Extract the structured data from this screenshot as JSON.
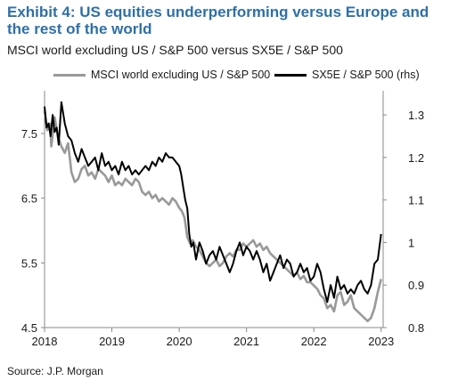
{
  "header": {
    "title": "Exhibit 4: US equities underperforming versus Europe and the rest of the world",
    "subtitle": "MSCI world excluding US / S&P 500 versus SX5E / S&P 500"
  },
  "footer": {
    "source": "Source: J.P. Morgan"
  },
  "colors": {
    "title": "#2f6fa8",
    "gray_series": "#999999",
    "black_series": "#000000"
  },
  "chart_data": {
    "type": "line",
    "title": "Exhibit 4: US equities underperforming versus Europe and the rest of the world",
    "subtitle": "MSCI world excluding US / S&P 500 versus SX5E / S&P 500",
    "legend_position": "top",
    "grid": false,
    "x_axis": {
      "ticks": [
        "2018",
        "2019",
        "2020",
        "2021",
        "2022",
        "2023"
      ],
      "range": [
        2018,
        2023.03
      ]
    },
    "y_axis_left": {
      "ticks": [
        "7.5",
        "6.5",
        "5.5",
        "4.5"
      ],
      "range": [
        4.5,
        8.05
      ]
    },
    "y_axis_right": {
      "ticks": [
        "1.3",
        "1.2",
        "1.1",
        "1",
        "0.9",
        "0.8"
      ],
      "range": [
        0.8,
        1.34
      ]
    },
    "series": [
      {
        "name": "MSCI world excluding US / S&P 500",
        "axis": "left",
        "color": "#999999",
        "x": [
          2018.0,
          2018.04,
          2018.08,
          2018.1,
          2018.15,
          2018.2,
          2018.25,
          2018.3,
          2018.35,
          2018.4,
          2018.45,
          2018.5,
          2018.55,
          2018.6,
          2018.65,
          2018.7,
          2018.75,
          2018.8,
          2018.85,
          2018.9,
          2018.95,
          2019.0,
          2019.05,
          2019.1,
          2019.15,
          2019.2,
          2019.25,
          2019.3,
          2019.35,
          2019.4,
          2019.45,
          2019.5,
          2019.55,
          2019.6,
          2019.65,
          2019.7,
          2019.75,
          2019.8,
          2019.85,
          2019.9,
          2019.95,
          2020.0,
          2020.04,
          2020.08,
          2020.12,
          2020.16,
          2020.2,
          2020.25,
          2020.3,
          2020.35,
          2020.4,
          2020.45,
          2020.5,
          2020.55,
          2020.6,
          2020.65,
          2020.7,
          2020.75,
          2020.8,
          2020.85,
          2020.9,
          2020.95,
          2021.0,
          2021.05,
          2021.1,
          2021.15,
          2021.2,
          2021.25,
          2021.3,
          2021.35,
          2021.4,
          2021.45,
          2021.5,
          2021.55,
          2021.6,
          2021.65,
          2021.7,
          2021.75,
          2021.8,
          2021.85,
          2021.9,
          2021.95,
          2022.0,
          2022.05,
          2022.1,
          2022.15,
          2022.2,
          2022.25,
          2022.3,
          2022.35,
          2022.4,
          2022.45,
          2022.5,
          2022.55,
          2022.6,
          2022.65,
          2022.7,
          2022.75,
          2022.8,
          2022.85,
          2022.9,
          2022.95,
          2023.0
        ],
        "y": [
          7.85,
          7.55,
          7.65,
          7.3,
          7.75,
          7.45,
          7.3,
          7.2,
          7.35,
          6.9,
          6.75,
          6.8,
          6.95,
          7.0,
          6.85,
          6.9,
          6.8,
          6.95,
          6.9,
          6.85,
          6.75,
          6.85,
          6.7,
          6.75,
          6.7,
          6.8,
          6.75,
          6.7,
          6.8,
          6.75,
          6.6,
          6.55,
          6.6,
          6.5,
          6.55,
          6.45,
          6.5,
          6.45,
          6.4,
          6.5,
          6.45,
          6.35,
          6.3,
          6.2,
          5.9,
          5.8,
          5.85,
          5.75,
          5.7,
          5.6,
          5.5,
          5.45,
          5.5,
          5.55,
          5.45,
          5.5,
          5.6,
          5.65,
          5.6,
          5.7,
          5.7,
          5.8,
          5.75,
          5.8,
          5.85,
          5.75,
          5.8,
          5.7,
          5.75,
          5.65,
          5.6,
          5.55,
          5.5,
          5.45,
          5.4,
          5.35,
          5.3,
          5.35,
          5.25,
          5.3,
          5.2,
          5.2,
          5.15,
          5.1,
          5.0,
          4.95,
          4.8,
          4.85,
          4.75,
          5.0,
          5.05,
          4.85,
          4.9,
          5.0,
          4.8,
          4.75,
          4.7,
          4.65,
          4.6,
          4.65,
          4.8,
          5.05,
          5.25
        ]
      },
      {
        "name": "SX5E / S&P 500 (rhs)",
        "axis": "right",
        "color": "#000000",
        "x": [
          2018.0,
          2018.03,
          2018.06,
          2018.09,
          2018.12,
          2018.15,
          2018.18,
          2018.21,
          2018.25,
          2018.3,
          2018.35,
          2018.4,
          2018.45,
          2018.5,
          2018.55,
          2018.6,
          2018.65,
          2018.7,
          2018.75,
          2018.8,
          2018.85,
          2018.9,
          2018.95,
          2019.0,
          2019.05,
          2019.1,
          2019.15,
          2019.2,
          2019.25,
          2019.3,
          2019.35,
          2019.4,
          2019.45,
          2019.5,
          2019.55,
          2019.6,
          2019.65,
          2019.7,
          2019.75,
          2019.8,
          2019.85,
          2019.9,
          2019.95,
          2020.0,
          2020.03,
          2020.06,
          2020.09,
          2020.12,
          2020.15,
          2020.18,
          2020.21,
          2020.25,
          2020.3,
          2020.35,
          2020.4,
          2020.45,
          2020.5,
          2020.55,
          2020.6,
          2020.65,
          2020.7,
          2020.75,
          2020.8,
          2020.85,
          2020.9,
          2020.95,
          2021.0,
          2021.05,
          2021.1,
          2021.15,
          2021.2,
          2021.25,
          2021.3,
          2021.35,
          2021.4,
          2021.45,
          2021.5,
          2021.55,
          2021.6,
          2021.65,
          2021.7,
          2021.75,
          2021.8,
          2021.85,
          2021.9,
          2021.95,
          2022.0,
          2022.05,
          2022.1,
          2022.15,
          2022.2,
          2022.25,
          2022.3,
          2022.35,
          2022.4,
          2022.45,
          2022.5,
          2022.55,
          2022.6,
          2022.65,
          2022.7,
          2022.75,
          2022.8,
          2022.85,
          2022.9,
          2022.95,
          2023.0
        ],
        "y": [
          1.32,
          1.27,
          1.28,
          1.25,
          1.3,
          1.26,
          1.27,
          1.23,
          1.33,
          1.28,
          1.25,
          1.24,
          1.21,
          1.19,
          1.22,
          1.2,
          1.18,
          1.19,
          1.2,
          1.17,
          1.21,
          1.18,
          1.19,
          1.17,
          1.18,
          1.16,
          1.19,
          1.17,
          1.18,
          1.16,
          1.17,
          1.16,
          1.17,
          1.18,
          1.17,
          1.19,
          1.18,
          1.2,
          1.19,
          1.21,
          1.2,
          1.2,
          1.19,
          1.18,
          1.16,
          1.13,
          1.1,
          1.08,
          1.02,
          0.99,
          1.0,
          0.96,
          1.0,
          0.98,
          0.95,
          0.97,
          0.98,
          0.96,
          0.99,
          0.97,
          0.95,
          0.93,
          0.95,
          0.98,
          1.0,
          0.97,
          0.99,
          0.98,
          0.96,
          0.98,
          0.96,
          0.93,
          0.95,
          0.91,
          0.93,
          0.95,
          0.97,
          0.94,
          0.96,
          0.95,
          0.92,
          0.93,
          0.95,
          0.93,
          0.94,
          0.91,
          0.92,
          0.95,
          0.93,
          0.89,
          0.86,
          0.9,
          0.87,
          0.92,
          0.89,
          0.9,
          0.88,
          0.89,
          0.88,
          0.9,
          0.91,
          0.89,
          0.88,
          0.9,
          0.95,
          0.96,
          1.02
        ]
      }
    ]
  }
}
